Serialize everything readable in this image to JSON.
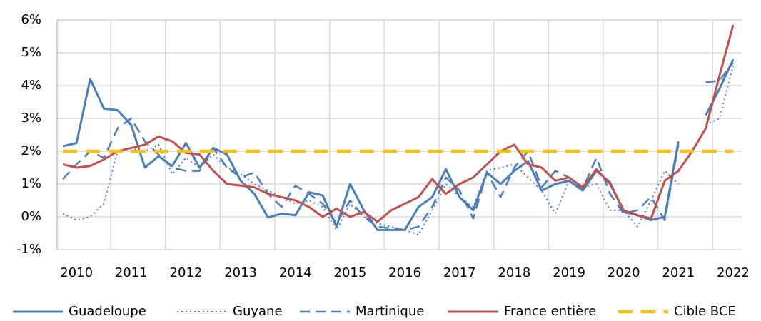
{
  "chart_data": {
    "type": "line",
    "categories": [
      null,
      "2010",
      null,
      null,
      null,
      "2011",
      null,
      null,
      null,
      "2012",
      null,
      null,
      null,
      "2013",
      null,
      null,
      null,
      "2014",
      null,
      null,
      null,
      "2015",
      null,
      null,
      null,
      "2016",
      null,
      null,
      null,
      "2017",
      null,
      null,
      null,
      "2018",
      null,
      null,
      null,
      "2019",
      null,
      null,
      null,
      "2020",
      null,
      null,
      null,
      "2021",
      null,
      null,
      null,
      "2022"
    ],
    "ylim": [
      -1,
      6
    ],
    "yticks": [
      {
        "value": -1,
        "label": "-1%"
      },
      {
        "value": 0,
        "label": "0%"
      },
      {
        "value": 1,
        "label": "1%"
      },
      {
        "value": 2,
        "label": "2%"
      },
      {
        "value": 3,
        "label": "3%"
      },
      {
        "value": 4,
        "label": "4%"
      },
      {
        "value": 5,
        "label": "5%"
      },
      {
        "value": 6,
        "label": "6%"
      }
    ],
    "grid": true,
    "legend": "bottom",
    "series": [
      {
        "name": "Guadeloupe",
        "color": "#4a7ebb",
        "dash": "solid",
        "values": [
          2.15,
          2.25,
          4.2,
          3.3,
          3.25,
          2.8,
          1.5,
          1.85,
          1.55,
          2.25,
          1.5,
          2.1,
          1.9,
          1.1,
          0.7,
          -0.02,
          0.1,
          0.05,
          0.75,
          0.65,
          -0.3,
          1.0,
          0.2,
          -0.4,
          -0.4,
          -0.4,
          0.3,
          0.6,
          1.45,
          0.6,
          0.2,
          1.35,
          1.0,
          1.4,
          1.7,
          0.8,
          1.0,
          1.1,
          0.8,
          1.4,
          1.05,
          0.15,
          0.05,
          -0.1,
          0.0,
          2.3,
          null,
          3.1,
          3.9,
          4.8
        ]
      },
      {
        "name": "Guyane",
        "color": "#4a7ebb",
        "dash": "dotted",
        "values": [
          0.1,
          -0.1,
          0.0,
          0.4,
          2.0,
          2.1,
          2.0,
          2.2,
          1.3,
          1.8,
          1.5,
          1.9,
          1.5,
          1.3,
          1.0,
          0.8,
          0.6,
          0.4,
          0.5,
          0.3,
          -0.4,
          0.4,
          0.0,
          -0.2,
          -0.3,
          -0.4,
          -0.55,
          0.2,
          1.0,
          0.6,
          0.3,
          1.4,
          1.5,
          1.6,
          1.2,
          0.8,
          0.1,
          1.1,
          0.9,
          1.0,
          0.2,
          0.2,
          -0.3,
          0.5,
          1.4,
          1.0,
          null,
          2.8,
          3.0,
          4.6
        ]
      },
      {
        "name": "Martinique",
        "color": "#4a7ebb",
        "dash": "dashed",
        "values": [
          1.15,
          1.6,
          2.0,
          1.8,
          2.7,
          3.0,
          2.3,
          1.9,
          1.5,
          1.4,
          1.4,
          2.1,
          1.5,
          1.2,
          1.35,
          0.7,
          0.3,
          0.95,
          0.7,
          0.4,
          -0.2,
          0.5,
          0.0,
          -0.3,
          -0.35,
          -0.4,
          -0.3,
          0.3,
          1.2,
          0.8,
          -0.05,
          1.35,
          0.6,
          1.5,
          2.0,
          0.9,
          1.4,
          1.2,
          0.85,
          1.8,
          0.7,
          0.1,
          0.2,
          0.6,
          -0.1,
          2.2,
          null,
          4.1,
          4.15,
          4.7
        ]
      },
      {
        "name": "France entière",
        "color": "#c0504d",
        "dash": "solid",
        "values": [
          1.6,
          1.5,
          1.55,
          1.75,
          2.0,
          2.1,
          2.2,
          2.45,
          2.3,
          1.95,
          1.9,
          1.4,
          1.0,
          0.95,
          0.9,
          0.7,
          0.6,
          0.5,
          0.3,
          0.0,
          0.25,
          0.0,
          0.15,
          -0.15,
          0.2,
          0.4,
          0.6,
          1.15,
          0.7,
          1.0,
          1.2,
          1.6,
          2.0,
          2.2,
          1.6,
          1.5,
          1.1,
          1.2,
          0.9,
          1.45,
          1.0,
          0.2,
          0.05,
          -0.05,
          1.1,
          1.4,
          2.0,
          2.7,
          4.3,
          5.85
        ]
      },
      {
        "name": "Cible BCE",
        "color": "#ffc000",
        "dash": "bold-dashed",
        "values": [
          2,
          2,
          2,
          2,
          2,
          2,
          2,
          2,
          2,
          2,
          2,
          2,
          2,
          2,
          2,
          2,
          2,
          2,
          2,
          2,
          2,
          2,
          2,
          2,
          2,
          2,
          2,
          2,
          2,
          2,
          2,
          2,
          2,
          2,
          2,
          2,
          2,
          2,
          2,
          2,
          2,
          2,
          2,
          2,
          2,
          2,
          2,
          2,
          2,
          2
        ]
      }
    ]
  }
}
